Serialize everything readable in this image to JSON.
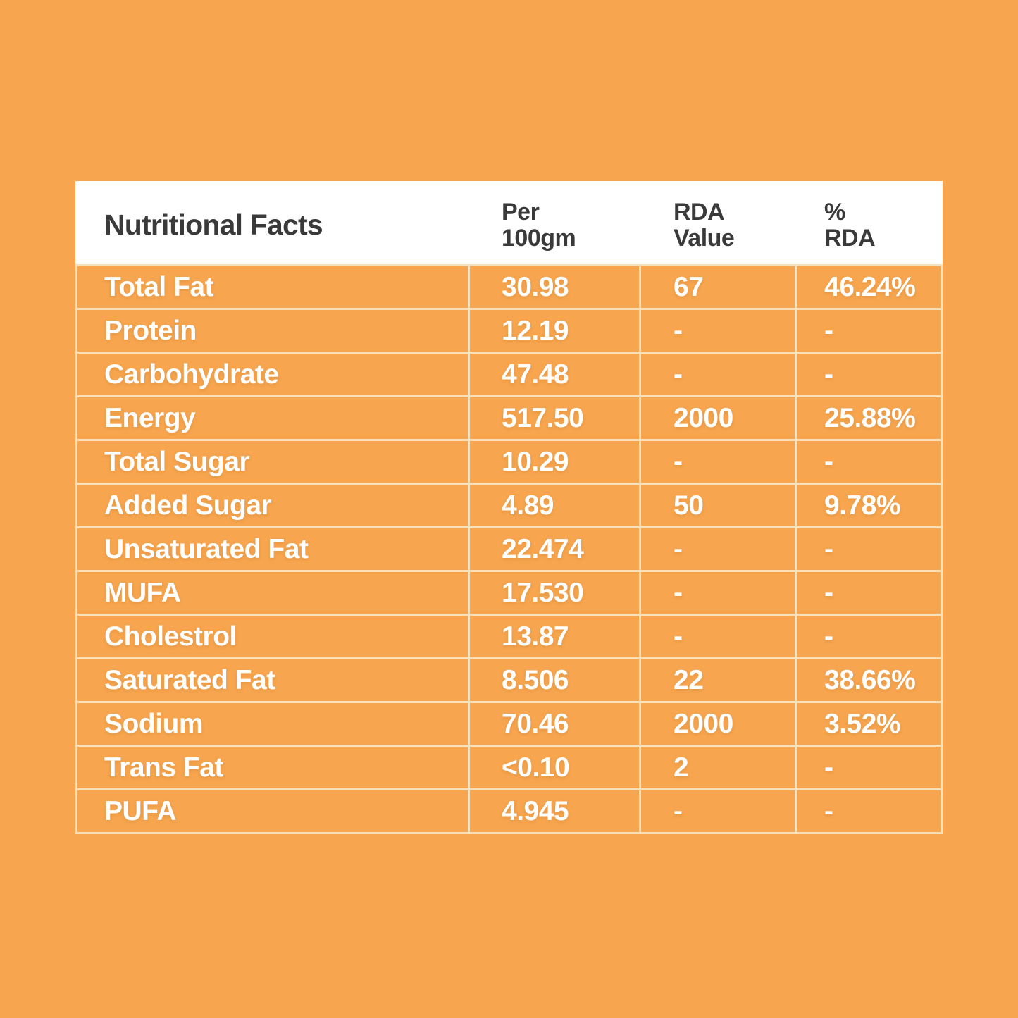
{
  "label": {
    "title": "Nutritional Facts",
    "columns": [
      {
        "line1": "Per",
        "line2": "100gm"
      },
      {
        "line1": "RDA",
        "line2": "Value"
      },
      {
        "line1": "%",
        "line2": "RDA"
      }
    ],
    "rows": [
      {
        "label": "Total Fat",
        "per_100gm": "30.98",
        "rda_value": "67",
        "rda_percent": "46.24%"
      },
      {
        "label": "Protein",
        "per_100gm": "12.19",
        "rda_value": "-",
        "rda_percent": "-"
      },
      {
        "label": "Carbohydrate",
        "per_100gm": "47.48",
        "rda_value": "-",
        "rda_percent": "-"
      },
      {
        "label": "Energy",
        "per_100gm": "517.50",
        "rda_value": "2000",
        "rda_percent": "25.88%"
      },
      {
        "label": "Total Sugar",
        "per_100gm": "10.29",
        "rda_value": "-",
        "rda_percent": "-"
      },
      {
        "label": "Added Sugar",
        "per_100gm": "4.89",
        "rda_value": "50",
        "rda_percent": "9.78%"
      },
      {
        "label": "Unsaturated Fat",
        "per_100gm": "22.474",
        "rda_value": "-",
        "rda_percent": "-"
      },
      {
        "label": "MUFA",
        "per_100gm": "17.530",
        "rda_value": "-",
        "rda_percent": "-"
      },
      {
        "label": "Cholestrol",
        "per_100gm": "13.87",
        "rda_value": "-",
        "rda_percent": "-"
      },
      {
        "label": "Saturated Fat",
        "per_100gm": "8.506",
        "rda_value": "22",
        "rda_percent": "38.66%"
      },
      {
        "label": "Sodium",
        "per_100gm": "70.46",
        "rda_value": "2000",
        "rda_percent": "3.52%"
      },
      {
        "label": "Trans Fat",
        "per_100gm": "<0.10",
        "rda_value": "2",
        "rda_percent": "-"
      },
      {
        "label": "PUFA",
        "per_100gm": "4.945",
        "rda_value": "-",
        "rda_percent": "-"
      }
    ],
    "colors": {
      "background_orange": "#F7A54F",
      "grid_line_cream": "#FAE0BB",
      "header_background": "#FFFFFF",
      "header_text": "#3A3A3A",
      "row_text": "#FFFFFF"
    }
  },
  "chart_data": {
    "type": "table",
    "title": "Nutritional Facts",
    "columns": [
      "Nutritional Facts",
      "Per 100gm",
      "RDA Value",
      "% RDA"
    ],
    "rows": [
      [
        "Total Fat",
        "30.98",
        "67",
        "46.24%"
      ],
      [
        "Protein",
        "12.19",
        "-",
        "-"
      ],
      [
        "Carbohydrate",
        "47.48",
        "-",
        "-"
      ],
      [
        "Energy",
        "517.50",
        "2000",
        "25.88%"
      ],
      [
        "Total Sugar",
        "10.29",
        "-",
        "-"
      ],
      [
        "Added Sugar",
        "4.89",
        "50",
        "9.78%"
      ],
      [
        "Unsaturated Fat",
        "22.474",
        "-",
        "-"
      ],
      [
        "MUFA",
        "17.530",
        "-",
        "-"
      ],
      [
        "Cholestrol",
        "13.87",
        "-",
        "-"
      ],
      [
        "Saturated Fat",
        "8.506",
        "22",
        "38.66%"
      ],
      [
        "Sodium",
        "70.46",
        "2000",
        "3.52%"
      ],
      [
        "Trans Fat",
        "<0.10",
        "2",
        "-"
      ],
      [
        "PUFA",
        "4.945",
        "-",
        "-"
      ]
    ]
  }
}
